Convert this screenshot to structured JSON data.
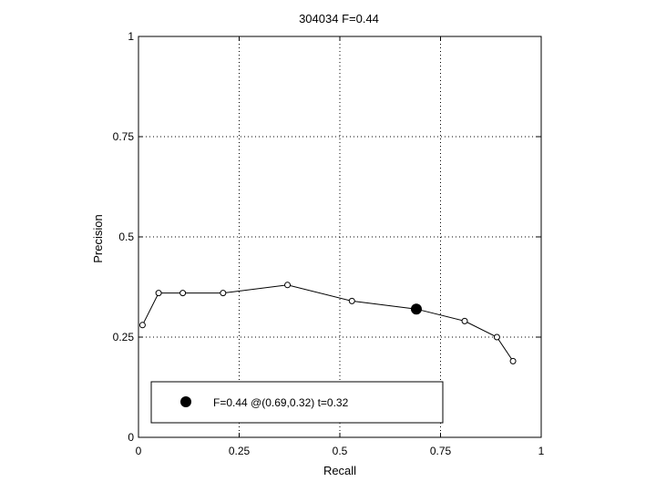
{
  "chart_data": {
    "type": "line",
    "title": "304034 F=0.44",
    "xlabel": "Recall",
    "ylabel": "Precision",
    "xlim": [
      0,
      1
    ],
    "ylim": [
      0,
      1
    ],
    "xticks": [
      0,
      0.25,
      0.5,
      0.75,
      1
    ],
    "yticks": [
      0,
      0.25,
      0.5,
      0.75,
      1
    ],
    "xtick_labels": [
      "0",
      "0.25",
      "0.5",
      "0.75",
      "1"
    ],
    "ytick_labels": [
      "0",
      "0.25",
      "0.5",
      "0.75",
      "1"
    ],
    "grid": true,
    "series": [
      {
        "x": [
          0.01,
          0.05,
          0.11,
          0.21,
          0.37,
          0.53,
          0.69,
          0.81,
          0.89,
          0.93
        ],
        "y": [
          0.28,
          0.36,
          0.36,
          0.36,
          0.38,
          0.34,
          0.32,
          0.29,
          0.25,
          0.19
        ],
        "marker": "open-circle",
        "color": "#000000"
      }
    ],
    "best_point": {
      "x": 0.69,
      "y": 0.32,
      "marker": "filled-circle",
      "color": "#000000"
    },
    "legend": {
      "text": "F=0.44 @(0.69,0.32) t=0.32",
      "placement": "bottom-left"
    }
  }
}
